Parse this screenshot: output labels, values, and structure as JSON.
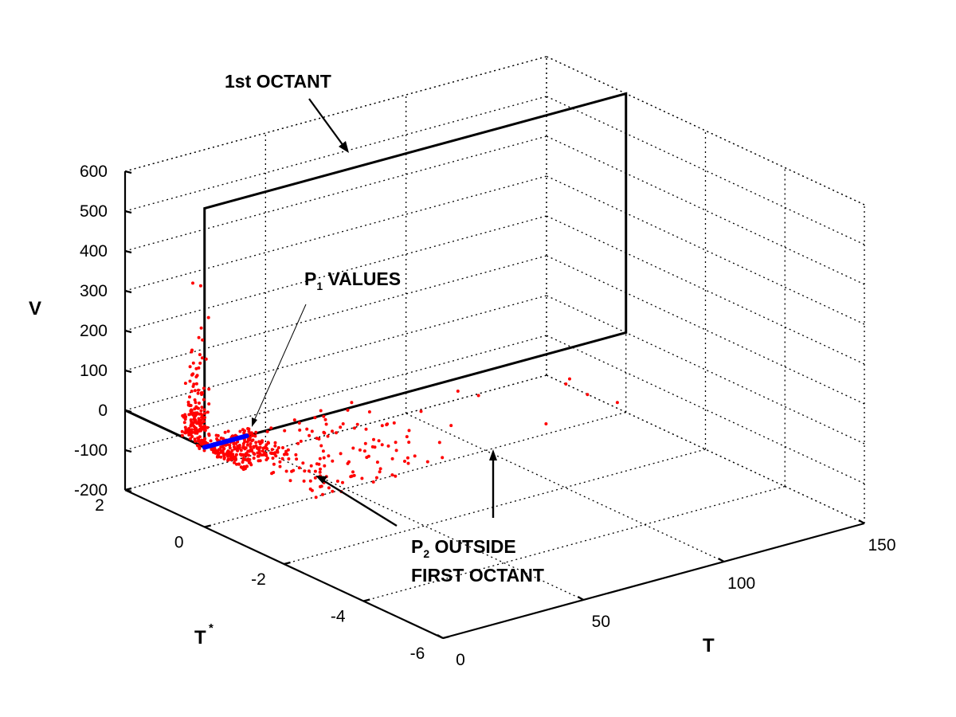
{
  "chart_data": {
    "type": "scatter",
    "projection": "3d",
    "grid": true,
    "xlabel": "T",
    "ylabel": "T",
    "ylabel_superscript": "*",
    "zlabel": "V",
    "xlim": [
      0,
      150
    ],
    "ylim": [
      -6,
      2
    ],
    "zlim": [
      -200,
      600
    ],
    "xticks": [
      "0",
      "50",
      "100",
      "150"
    ],
    "yticks": [
      "-6",
      "-4",
      "-2",
      "0",
      "2"
    ],
    "zticks": [
      "-200",
      "-100",
      "0",
      "100",
      "200",
      "300",
      "400",
      "500",
      "600"
    ],
    "colors": {
      "scatter": "#ff0000",
      "p1_segment": "#0000ff",
      "octant": "#000000"
    },
    "octant_box": {
      "t_range": [
        0,
        150
      ],
      "tstar": 0,
      "v_range": [
        0,
        600
      ]
    },
    "p1_segment": {
      "t": [
        0,
        15
      ],
      "tstar": 0,
      "v": [
        0,
        0
      ]
    },
    "scatter_clusters": [
      {
        "t_range": [
          0,
          2
        ],
        "tstar_range": [
          0,
          0.6
        ],
        "v_range": [
          0,
          80
        ],
        "count": 120
      },
      {
        "t_range": [
          0,
          2.5
        ],
        "tstar_range": [
          0,
          0.5
        ],
        "v_range": [
          80,
          220
        ],
        "count": 45
      },
      {
        "t_range": [
          0,
          2
        ],
        "tstar_range": [
          0,
          0.4
        ],
        "v_range": [
          220,
          420
        ],
        "count": 8
      },
      {
        "t_range": [
          0,
          18
        ],
        "tstar_range": [
          -1,
          0.3
        ],
        "v_range": [
          -10,
          10
        ],
        "count": 230
      },
      {
        "t_range": [
          5,
          55
        ],
        "tstar_range": [
          -2.5,
          0.3
        ],
        "v_range": [
          -25,
          10
        ],
        "count": 160
      },
      {
        "t_range": [
          40,
          120
        ],
        "tstar_range": [
          -2.5,
          0
        ],
        "v_range": [
          -10,
          25
        ],
        "count": 12
      }
    ],
    "annotations": [
      {
        "text": "1st OCTANT"
      },
      {
        "text_main": "P",
        "text_sub": "1",
        "text_rest": " VALUES"
      },
      {
        "text_main": "P",
        "text_sub": "2",
        "text_rest": " OUTSIDE",
        "line2": "FIRST OCTANT"
      }
    ]
  }
}
